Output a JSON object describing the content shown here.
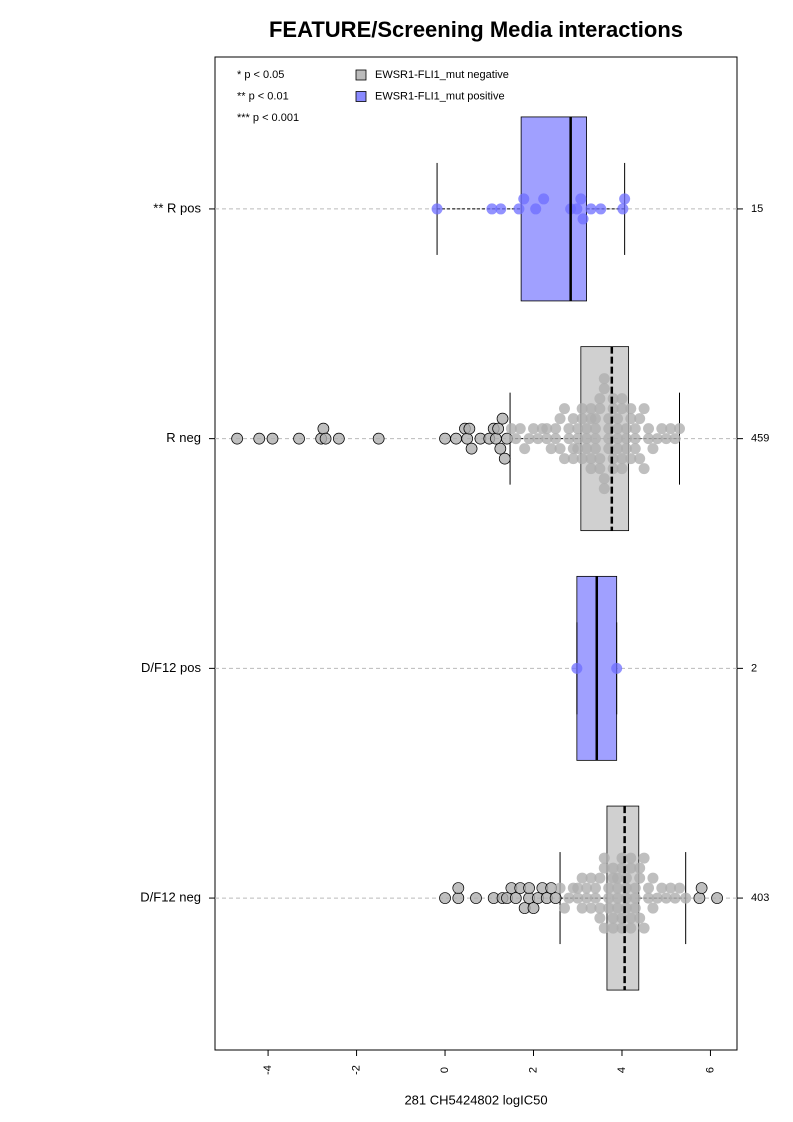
{
  "chart_data": {
    "type": "boxplot",
    "title": "FEATURE/Screening Media interactions",
    "x_label": "281 CH5424802 logIC50",
    "xlim": [
      -5.2,
      6.6
    ],
    "xticks": [
      -4,
      -2,
      0,
      2,
      4,
      6
    ],
    "grid": true,
    "significance_notes": [
      "* p < 0.05",
      "** p < 0.01",
      "*** p < 0.001"
    ],
    "series": [
      {
        "name": "EWSR1-FLI1_mut negative",
        "color": "#bbbbbb"
      },
      {
        "name": "EWSR1-FLI1_mut positive",
        "color": "#8a8aff"
      }
    ],
    "groups": [
      {
        "category": "** R pos",
        "series": 1,
        "count": 15,
        "q1": 1.72,
        "median": 2.84,
        "q3": 3.2,
        "whisker_low": -0.18,
        "whisker_high": 4.06,
        "points": [
          -0.18,
          1.06,
          1.26,
          1.67,
          1.78,
          2.05,
          2.23,
          2.84,
          2.98,
          3.07,
          3.12,
          3.3,
          3.52,
          4.02,
          4.06
        ]
      },
      {
        "category": "R neg",
        "series": 0,
        "count": 459,
        "q1": 3.07,
        "median": 3.77,
        "q3": 4.15,
        "whisker_low": 1.47,
        "whisker_high": 5.3,
        "points": [
          -4.7,
          -4.2,
          -3.9,
          -3.3,
          -2.8,
          -2.75,
          -2.7,
          -2.4,
          -1.5,
          0,
          0.25,
          0.45,
          0.5,
          0.55,
          0.6,
          0.8,
          1.0,
          1.1,
          1.15,
          1.2,
          1.25,
          1.3,
          1.35,
          1.4,
          1.5,
          1.6,
          1.7,
          1.8,
          1.9,
          2.0,
          2.1,
          2.2,
          2.3,
          2.3,
          2.4,
          2.5,
          2.5,
          2.6,
          2.6,
          2.7,
          2.7,
          2.8,
          2.8,
          2.9,
          2.9,
          2.9,
          3.0,
          3.0,
          3.0,
          3.1,
          3.1,
          3.1,
          3.2,
          3.2,
          3.2,
          3.3,
          3.3,
          3.3,
          3.3,
          3.4,
          3.4,
          3.4,
          3.4,
          3.5,
          3.5,
          3.5,
          3.5,
          3.6,
          3.6,
          3.6,
          3.6,
          3.7,
          3.7,
          3.7,
          3.7,
          3.8,
          3.8,
          3.8,
          3.8,
          3.9,
          3.9,
          3.9,
          3.9,
          4.0,
          4.0,
          4.0,
          4.0,
          4.1,
          4.1,
          4.1,
          4.2,
          4.2,
          4.2,
          4.3,
          4.3,
          4.3,
          4.4,
          4.4,
          4.5,
          4.5,
          4.6,
          4.6,
          4.7,
          4.8,
          4.9,
          5.0,
          5.1,
          5.2,
          5.3
        ]
      },
      {
        "category": "D/F12 pos",
        "series": 1,
        "count": 2,
        "q1": 2.98,
        "median": 3.43,
        "q3": 3.88,
        "whisker_low": 2.98,
        "whisker_high": 3.88,
        "points": [
          2.98,
          3.88
        ]
      },
      {
        "category": "D/F12 neg",
        "series": 0,
        "count": 403,
        "q1": 3.66,
        "median": 4.06,
        "q3": 4.38,
        "whisker_low": 2.6,
        "whisker_high": 5.44,
        "points": [
          0,
          0.3,
          0.3,
          0.7,
          1.1,
          1.3,
          1.4,
          1.5,
          1.6,
          1.7,
          1.8,
          1.9,
          1.9,
          2.0,
          2.1,
          2.2,
          2.3,
          2.4,
          2.5,
          2.6,
          2.7,
          2.8,
          2.9,
          3.0,
          3.0,
          3.1,
          3.1,
          3.2,
          3.2,
          3.3,
          3.3,
          3.4,
          3.4,
          3.5,
          3.5,
          3.5,
          3.6,
          3.6,
          3.6,
          3.7,
          3.7,
          3.7,
          3.8,
          3.8,
          3.8,
          3.8,
          3.9,
          3.9,
          3.9,
          3.9,
          4.0,
          4.0,
          4.0,
          4.0,
          4.1,
          4.1,
          4.1,
          4.1,
          4.2,
          4.2,
          4.2,
          4.2,
          4.3,
          4.3,
          4.3,
          4.4,
          4.4,
          4.4,
          4.5,
          4.5,
          4.6,
          4.6,
          4.7,
          4.7,
          4.8,
          4.9,
          5.0,
          5.1,
          5.2,
          5.3,
          5.44,
          5.75,
          5.8,
          6.15
        ]
      }
    ]
  }
}
